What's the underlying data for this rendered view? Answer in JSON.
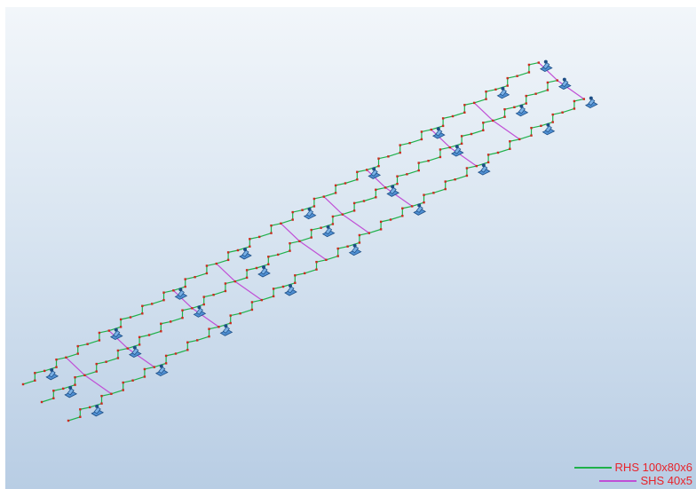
{
  "viewport": {
    "background_top": "#f2f6fa",
    "background_bottom": "#b8cde4"
  },
  "legend": [
    {
      "label": "RHS 100x80x6",
      "color": "#1fb14a"
    },
    {
      "label": "SHS 40x5",
      "color": "#c04fd6"
    }
  ],
  "colors": {
    "node": "#cc2a1e",
    "support": "#4f8fd2",
    "support_dark": "#1d4e86"
  },
  "model": {
    "stringers": 3,
    "steps_per_stringer": 24,
    "supports_per_stringer": 9,
    "bracing_members": 10,
    "member_types": {
      "stringer": "RHS 100x80x6",
      "bracing": "SHS 40x5"
    },
    "support_icon": "fixed-support-icon"
  }
}
